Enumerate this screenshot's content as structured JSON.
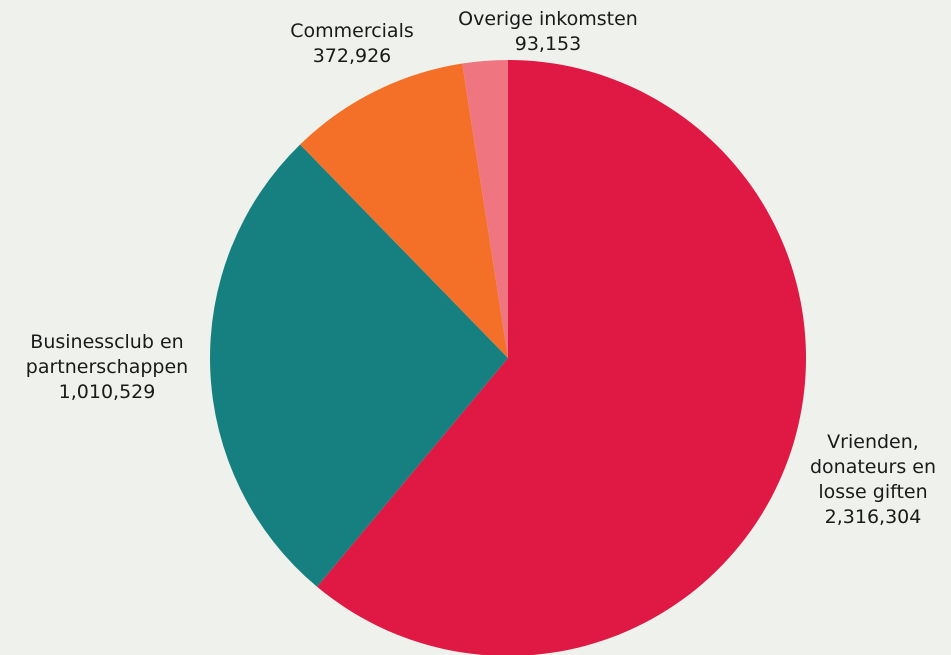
{
  "chart_data": {
    "type": "pie",
    "title": "",
    "slices": [
      {
        "label_lines": [
          "Vrienden,",
          "donateurs en",
          "losse giften"
        ],
        "value_text": "2,316,304",
        "value": 2316304,
        "color": "#e01844"
      },
      {
        "label_lines": [
          "Businessclub en",
          "partnerschappen"
        ],
        "value_text": "1,010,529",
        "value": 1010529,
        "color": "#168080"
      },
      {
        "label_lines": [
          "Commercials"
        ],
        "value_text": "372,926",
        "value": 372926,
        "color": "#f47028"
      },
      {
        "label_lines": [
          "Overige inkomsten"
        ],
        "value_text": "93,153",
        "value": 93153,
        "color": "#ef7680"
      }
    ],
    "legend": "none",
    "start_angle": "12 o'clock",
    "direction": "clockwise"
  }
}
